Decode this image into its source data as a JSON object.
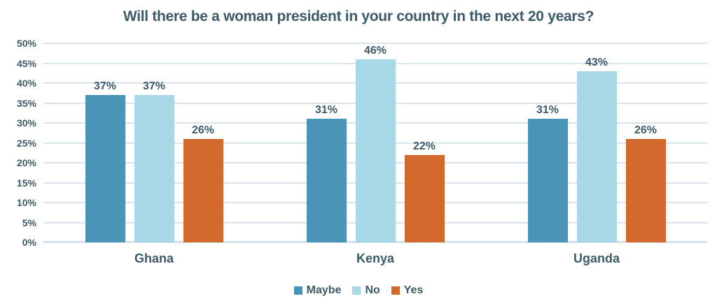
{
  "colors": {
    "text": "#3C5A68",
    "gridline": "#DBE4ED",
    "axis_line": "#D6E0E9",
    "background": "#FFFFFF",
    "series_maybe": "#4A94B8",
    "series_no": "#A8D7E6",
    "series_yes": "#D4692E"
  },
  "chart_data": {
    "type": "bar",
    "title": "Will there be a woman president in your country in the next 20 years?",
    "categories": [
      "Ghana",
      "Kenya",
      "Uganda"
    ],
    "series": [
      {
        "name": "Maybe",
        "color": "#4A94B8",
        "values": [
          37,
          31,
          31
        ]
      },
      {
        "name": "No",
        "color": "#A8D7E6",
        "values": [
          37,
          46,
          43
        ]
      },
      {
        "name": "Yes",
        "color": "#D4692E",
        "values": [
          26,
          22,
          26
        ]
      }
    ],
    "data_labels": [
      "37%",
      "37%",
      "26%",
      "31%",
      "46%",
      "22%",
      "31%",
      "43%",
      "26%"
    ],
    "value_suffix": "%",
    "xlabel": "",
    "ylabel": "",
    "ylim": [
      0,
      50
    ],
    "yticks": [
      0,
      5,
      10,
      15,
      20,
      25,
      30,
      35,
      40,
      45,
      50
    ],
    "ytick_labels": [
      "0%",
      "5%",
      "10%",
      "15%",
      "20%",
      "25%",
      "30%",
      "35%",
      "40%",
      "45%",
      "50%"
    ],
    "grid": "horizontal",
    "legend_position": "bottom",
    "legend_entries": [
      "Maybe",
      "No",
      "Yes"
    ]
  }
}
